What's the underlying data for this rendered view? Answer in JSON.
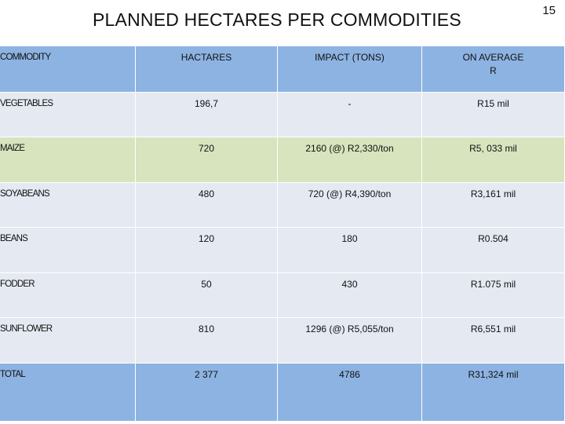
{
  "slide": {
    "title": "PLANNED HECTARES PER COMMODITIES",
    "page_number": "15"
  },
  "table": {
    "headers": [
      "COMMODITY",
      "HACTARES",
      "IMPACT (TONS)",
      "ON AVERAGE\nR"
    ],
    "rows": [
      [
        "VEGETABLES",
        "196,7",
        "-",
        "R15 mil"
      ],
      [
        "MAIZE",
        "720",
        "2160 (@) R2,330/ton",
        "R5, 033 mil"
      ],
      [
        "SOYABEANS",
        "480",
        "720 (@) R4,390/ton",
        "R3,161 mil"
      ],
      [
        "BEANS",
        "120",
        "180",
        "R0.504"
      ],
      [
        "FODDER",
        "50",
        "430",
        "R1.075 mil"
      ],
      [
        "SUNFLOWER",
        "810",
        "1296 (@) R5,055/ton",
        "R6,551 mil"
      ]
    ],
    "total": [
      "TOTAL",
      "2 377",
      "4786",
      "R31,324 mil"
    ]
  },
  "colors": {
    "header_bg": "#8db3e2",
    "row_bg": "#e4e9f2",
    "highlight_row_bg": "#d7e4bd",
    "total_bg": "#8db3e2"
  }
}
